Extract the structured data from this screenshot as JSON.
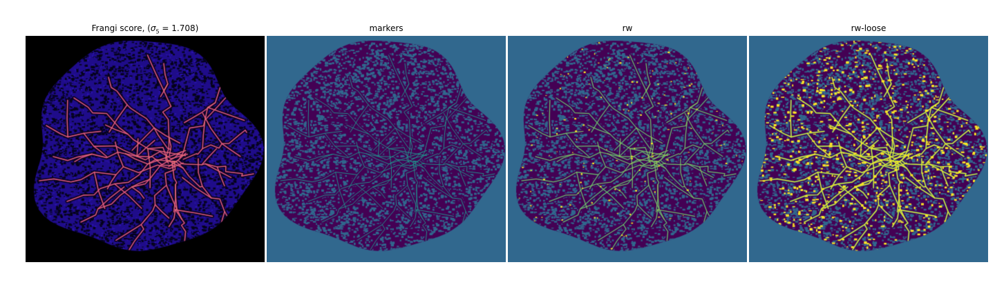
{
  "figure": {
    "panels": [
      {
        "title_prefix": "Frangi score, (",
        "title_math": "σ",
        "title_sub": "5",
        "title_suffix": " = 1.708)",
        "kind": "frangi",
        "background_color": "#000000"
      },
      {
        "title": "markers",
        "kind": "markers",
        "background_color": "#31688e"
      },
      {
        "title": "rw",
        "kind": "rw",
        "background_color": "#31688e"
      },
      {
        "title": "rw-loose",
        "kind": "rw-loose",
        "background_color": "#31688e"
      }
    ],
    "colors": {
      "purple": "#440154",
      "teal": "#21918c",
      "yellow": "#fde725",
      "vessel_magenta": "#c8348c",
      "vessel_orange": "#f7a35c",
      "frangi_base": "#1f0c8a"
    }
  }
}
